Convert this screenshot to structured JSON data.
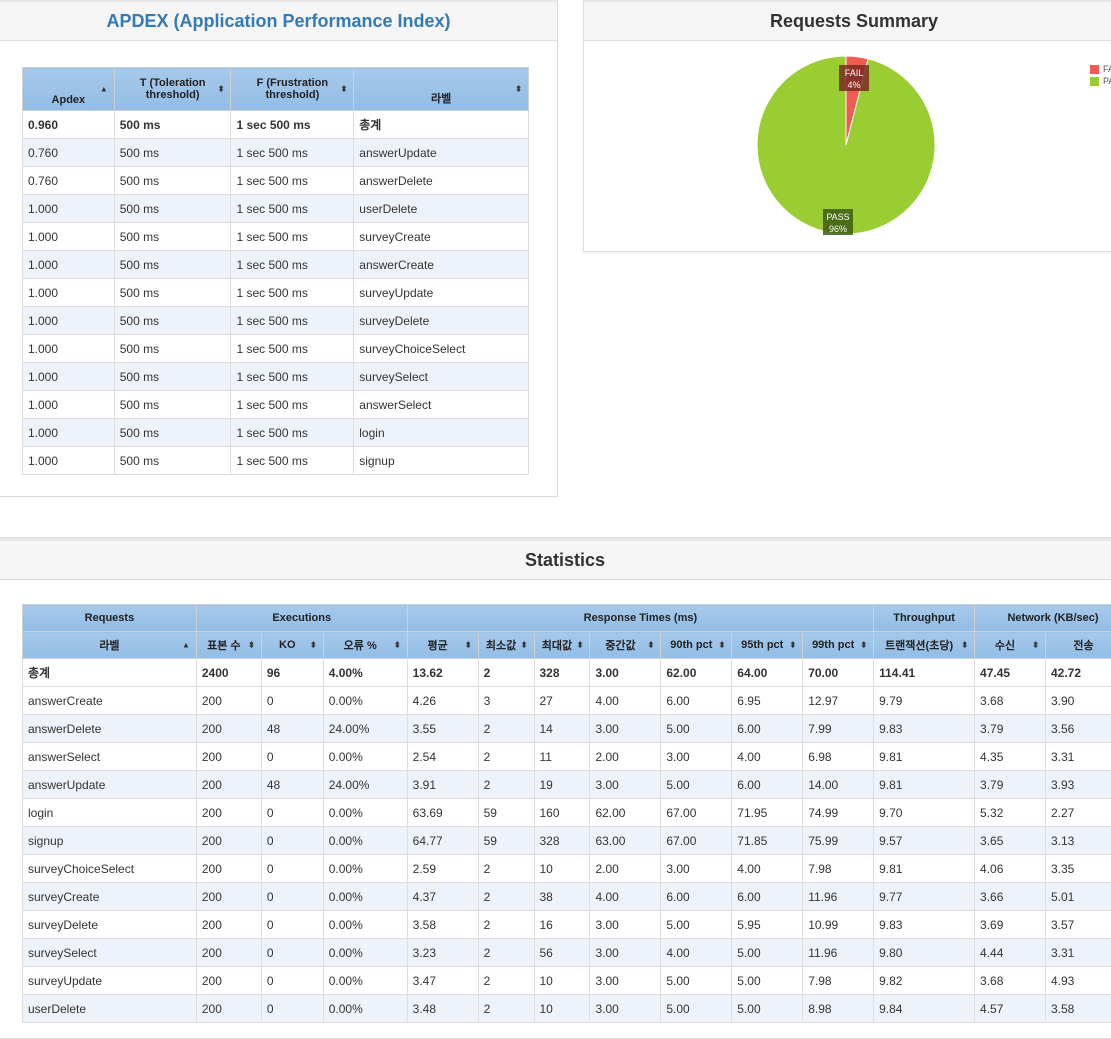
{
  "apdex": {
    "title": "APDEX (Application Performance Index)",
    "headers": [
      "Apdex",
      "T (Toleration threshold)",
      "F (Frustration threshold)",
      "라벨"
    ],
    "rows": [
      [
        "0.960",
        "500 ms",
        "1 sec 500 ms",
        "총계"
      ],
      [
        "0.760",
        "500 ms",
        "1 sec 500 ms",
        "answerUpdate"
      ],
      [
        "0.760",
        "500 ms",
        "1 sec 500 ms",
        "answerDelete"
      ],
      [
        "1.000",
        "500 ms",
        "1 sec 500 ms",
        "userDelete"
      ],
      [
        "1.000",
        "500 ms",
        "1 sec 500 ms",
        "surveyCreate"
      ],
      [
        "1.000",
        "500 ms",
        "1 sec 500 ms",
        "answerCreate"
      ],
      [
        "1.000",
        "500 ms",
        "1 sec 500 ms",
        "surveyUpdate"
      ],
      [
        "1.000",
        "500 ms",
        "1 sec 500 ms",
        "surveyDelete"
      ],
      [
        "1.000",
        "500 ms",
        "1 sec 500 ms",
        "surveyChoiceSelect"
      ],
      [
        "1.000",
        "500 ms",
        "1 sec 500 ms",
        "surveySelect"
      ],
      [
        "1.000",
        "500 ms",
        "1 sec 500 ms",
        "answerSelect"
      ],
      [
        "1.000",
        "500 ms",
        "1 sec 500 ms",
        "login"
      ],
      [
        "1.000",
        "500 ms",
        "1 sec 500 ms",
        "signup"
      ]
    ]
  },
  "summary": {
    "title": "Requests Summary",
    "legend": [
      {
        "label": "FA",
        "color": "#ee5c52"
      },
      {
        "label": "PA",
        "color": "#9acd32"
      }
    ]
  },
  "chart_data": {
    "type": "pie",
    "slices": [
      {
        "name": "FAIL",
        "value": 4,
        "label": "4%",
        "color": "#ee5c52"
      },
      {
        "name": "PASS",
        "value": 96,
        "label": "96%",
        "color": "#9acd32"
      }
    ]
  },
  "statistics": {
    "title": "Statistics",
    "group_headers": [
      "Requests",
      "Executions",
      "Response Times (ms)",
      "Throughput",
      "Network (KB/sec)"
    ],
    "headers": [
      "라벨",
      "표본 수",
      "KO",
      "오류 %",
      "평균",
      "최소값",
      "최대값",
      "중간값",
      "90th pct",
      "95th pct",
      "99th pct",
      "트랜잭션(초당)",
      "수신",
      "전송"
    ],
    "rows": [
      [
        "총계",
        "2400",
        "96",
        "4.00%",
        "13.62",
        "2",
        "328",
        "3.00",
        "62.00",
        "64.00",
        "70.00",
        "114.41",
        "47.45",
        "42.72"
      ],
      [
        "answerCreate",
        "200",
        "0",
        "0.00%",
        "4.26",
        "3",
        "27",
        "4.00",
        "6.00",
        "6.95",
        "12.97",
        "9.79",
        "3.68",
        "3.90"
      ],
      [
        "answerDelete",
        "200",
        "48",
        "24.00%",
        "3.55",
        "2",
        "14",
        "3.00",
        "5.00",
        "6.00",
        "7.99",
        "9.83",
        "3.79",
        "3.56"
      ],
      [
        "answerSelect",
        "200",
        "0",
        "0.00%",
        "2.54",
        "2",
        "11",
        "2.00",
        "3.00",
        "4.00",
        "6.98",
        "9.81",
        "4.35",
        "3.31"
      ],
      [
        "answerUpdate",
        "200",
        "48",
        "24.00%",
        "3.91",
        "2",
        "19",
        "3.00",
        "5.00",
        "6.00",
        "14.00",
        "9.81",
        "3.79",
        "3.93"
      ],
      [
        "login",
        "200",
        "0",
        "0.00%",
        "63.69",
        "59",
        "160",
        "62.00",
        "67.00",
        "71.95",
        "74.99",
        "9.70",
        "5.32",
        "2.27"
      ],
      [
        "signup",
        "200",
        "0",
        "0.00%",
        "64.77",
        "59",
        "328",
        "63.00",
        "67.00",
        "71.85",
        "75.99",
        "9.57",
        "3.65",
        "3.13"
      ],
      [
        "surveyChoiceSelect",
        "200",
        "0",
        "0.00%",
        "2.59",
        "2",
        "10",
        "2.00",
        "3.00",
        "4.00",
        "7.98",
        "9.81",
        "4.06",
        "3.35"
      ],
      [
        "surveyCreate",
        "200",
        "0",
        "0.00%",
        "4.37",
        "2",
        "38",
        "4.00",
        "6.00",
        "6.00",
        "11.96",
        "9.77",
        "3.66",
        "5.01"
      ],
      [
        "surveyDelete",
        "200",
        "0",
        "0.00%",
        "3.58",
        "2",
        "16",
        "3.00",
        "5.00",
        "5.95",
        "10.99",
        "9.83",
        "3.69",
        "3.57"
      ],
      [
        "surveySelect",
        "200",
        "0",
        "0.00%",
        "3.23",
        "2",
        "56",
        "3.00",
        "4.00",
        "5.00",
        "11.96",
        "9.80",
        "4.44",
        "3.31"
      ],
      [
        "surveyUpdate",
        "200",
        "0",
        "0.00%",
        "3.47",
        "2",
        "10",
        "3.00",
        "5.00",
        "5.00",
        "7.98",
        "9.82",
        "3.68",
        "4.93"
      ],
      [
        "userDelete",
        "200",
        "0",
        "0.00%",
        "3.48",
        "2",
        "10",
        "3.00",
        "5.00",
        "5.00",
        "8.98",
        "9.84",
        "4.57",
        "3.58"
      ]
    ]
  }
}
